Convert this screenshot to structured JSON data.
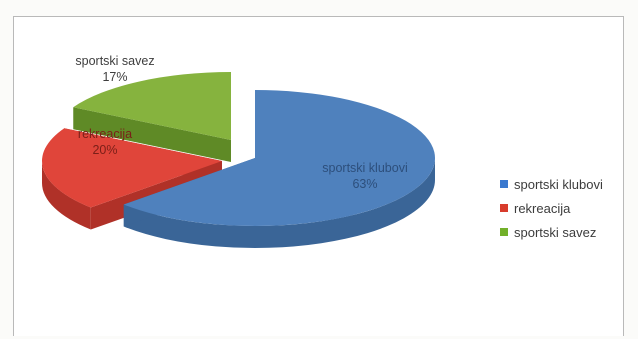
{
  "chart_data": {
    "type": "pie",
    "variant": "exploded-3d",
    "title": "",
    "slices": [
      {
        "label": "sportski klubovi",
        "value": 63,
        "value_text": "63%",
        "color": "#4f81bd",
        "side_color": "#3a6597",
        "label_color": "#2d4f7c"
      },
      {
        "label": "rekreacija",
        "value": 20,
        "value_text": "20%",
        "color": "#e0453a",
        "side_color": "#b03128",
        "label_color": "#7a1f18"
      },
      {
        "label": "sportski savez",
        "value": 17,
        "value_text": "17%",
        "color": "#86b33e",
        "side_color": "#5f8a26",
        "label_color": "#3e3e3e"
      }
    ],
    "legend": {
      "position": "right",
      "items": [
        {
          "label": "sportski klubovi",
          "color": "#3a79cf"
        },
        {
          "label": "rekreacija",
          "color": "#d83c2c"
        },
        {
          "label": "sportski savez",
          "color": "#72b02a"
        }
      ]
    }
  }
}
